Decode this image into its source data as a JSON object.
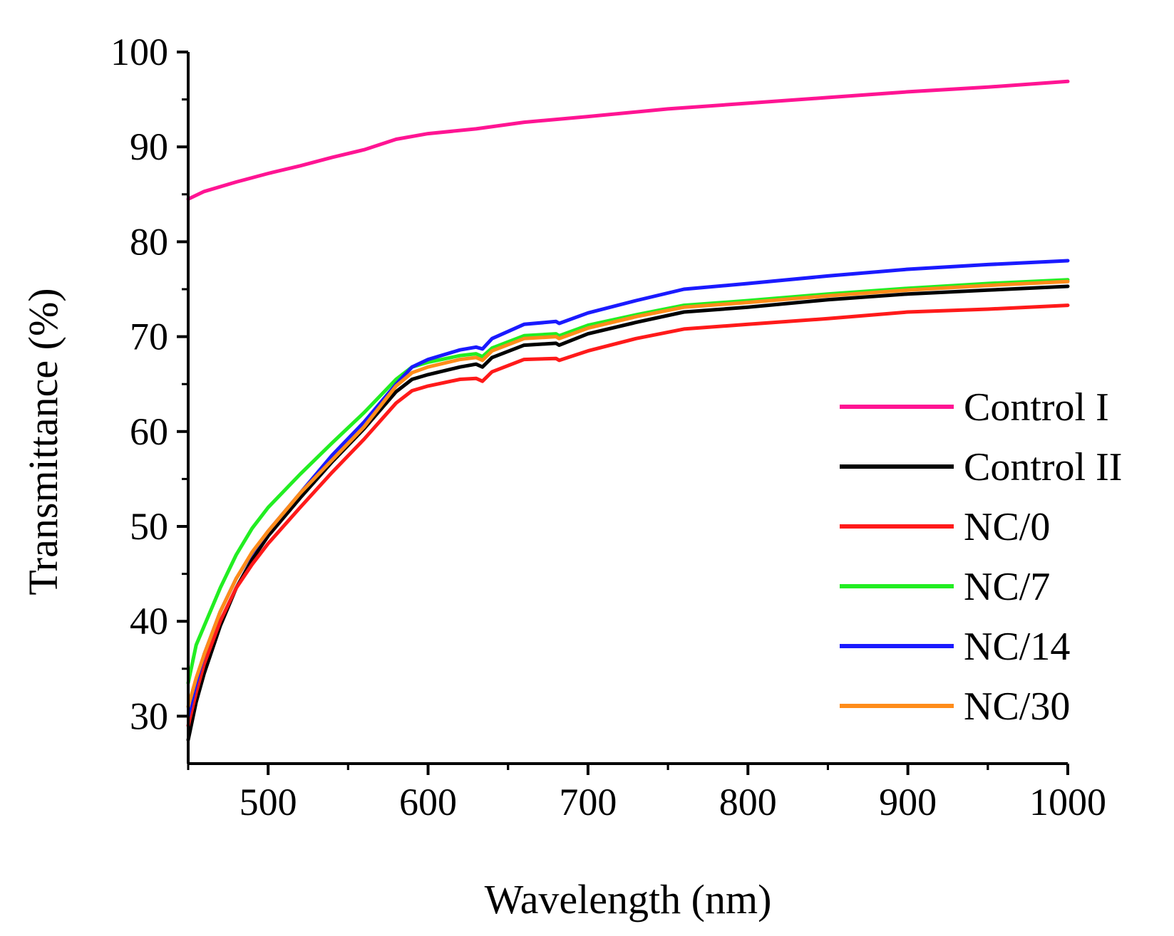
{
  "chart_data": {
    "type": "line",
    "title": "",
    "xlabel": "Wavelength (nm)",
    "ylabel": "Transmittance (%)",
    "xlim": [
      450,
      1000
    ],
    "ylim": [
      25,
      100
    ],
    "x_ticks": [
      500,
      600,
      700,
      800,
      900,
      1000
    ],
    "y_ticks": [
      30,
      40,
      50,
      60,
      70,
      80,
      90,
      100
    ],
    "legend_position": "right",
    "series": [
      {
        "name": "Control I",
        "color": "#ff1493",
        "x": [
          450,
          460,
          480,
          500,
          520,
          540,
          560,
          580,
          600,
          630,
          660,
          700,
          750,
          800,
          850,
          900,
          950,
          1000
        ],
        "y": [
          84.5,
          85.3,
          86.3,
          87.2,
          88.0,
          88.9,
          89.7,
          90.8,
          91.4,
          91.9,
          92.6,
          93.2,
          94.0,
          94.6,
          95.2,
          95.8,
          96.3,
          96.9
        ]
      },
      {
        "name": "Control II",
        "color": "#000000",
        "x": [
          450,
          455,
          460,
          470,
          480,
          490,
          500,
          520,
          540,
          560,
          580,
          590,
          600,
          620,
          630,
          634,
          640,
          660,
          680,
          682,
          700,
          730,
          760,
          800,
          850,
          900,
          950,
          1000
        ],
        "y": [
          27.5,
          31.5,
          34.5,
          39.5,
          43.5,
          46.5,
          49.0,
          53.0,
          56.8,
          60.3,
          64.2,
          65.5,
          66.0,
          66.8,
          67.1,
          66.8,
          67.8,
          69.1,
          69.3,
          69.1,
          70.3,
          71.5,
          72.6,
          73.1,
          73.9,
          74.5,
          74.9,
          75.3
        ]
      },
      {
        "name": "NC/0",
        "color": "#ff1a1a",
        "x": [
          450,
          455,
          460,
          470,
          480,
          490,
          500,
          520,
          540,
          560,
          580,
          590,
          600,
          620,
          630,
          634,
          640,
          660,
          680,
          682,
          700,
          730,
          760,
          800,
          850,
          900,
          950,
          1000
        ],
        "y": [
          29.0,
          32.5,
          35.5,
          40.0,
          43.5,
          46.0,
          48.2,
          52.0,
          55.7,
          59.2,
          63.0,
          64.3,
          64.8,
          65.5,
          65.6,
          65.3,
          66.3,
          67.6,
          67.7,
          67.5,
          68.5,
          69.8,
          70.8,
          71.3,
          71.9,
          72.6,
          72.9,
          73.3
        ]
      },
      {
        "name": "NC/7",
        "color": "#22ee22",
        "x": [
          450,
          455,
          460,
          470,
          480,
          490,
          500,
          520,
          540,
          560,
          580,
          590,
          600,
          620,
          630,
          634,
          640,
          660,
          680,
          682,
          700,
          730,
          760,
          800,
          850,
          900,
          950,
          1000
        ],
        "y": [
          33.5,
          37.5,
          39.5,
          43.5,
          47.0,
          49.8,
          52.0,
          55.5,
          58.8,
          62.0,
          65.5,
          66.8,
          67.3,
          68.0,
          68.2,
          67.9,
          68.8,
          70.1,
          70.3,
          70.1,
          71.2,
          72.3,
          73.3,
          73.8,
          74.5,
          75.1,
          75.6,
          76.0
        ]
      },
      {
        "name": "NC/14",
        "color": "#1a1aff",
        "x": [
          450,
          455,
          460,
          470,
          480,
          490,
          500,
          520,
          540,
          560,
          580,
          590,
          600,
          620,
          630,
          634,
          640,
          660,
          680,
          682,
          700,
          730,
          760,
          800,
          850,
          900,
          950,
          1000
        ],
        "y": [
          30.0,
          33.5,
          36.5,
          41.0,
          44.5,
          47.2,
          49.5,
          53.5,
          57.5,
          61.0,
          65.0,
          66.8,
          67.6,
          68.6,
          68.9,
          68.7,
          69.8,
          71.3,
          71.6,
          71.4,
          72.5,
          73.8,
          75.0,
          75.6,
          76.4,
          77.1,
          77.6,
          78.0
        ]
      },
      {
        "name": "NC/30",
        "color": "#ff8c1a",
        "x": [
          450,
          455,
          460,
          470,
          480,
          490,
          500,
          520,
          540,
          560,
          580,
          590,
          600,
          620,
          630,
          634,
          640,
          660,
          680,
          682,
          700,
          730,
          760,
          800,
          850,
          900,
          950,
          1000
        ],
        "y": [
          31.0,
          34.0,
          36.5,
          41.0,
          44.5,
          47.3,
          49.5,
          53.5,
          57.0,
          60.5,
          64.8,
          66.2,
          66.8,
          67.6,
          67.8,
          67.5,
          68.5,
          69.8,
          70.0,
          69.8,
          70.9,
          72.1,
          73.1,
          73.6,
          74.3,
          74.9,
          75.4,
          75.8
        ]
      }
    ]
  }
}
